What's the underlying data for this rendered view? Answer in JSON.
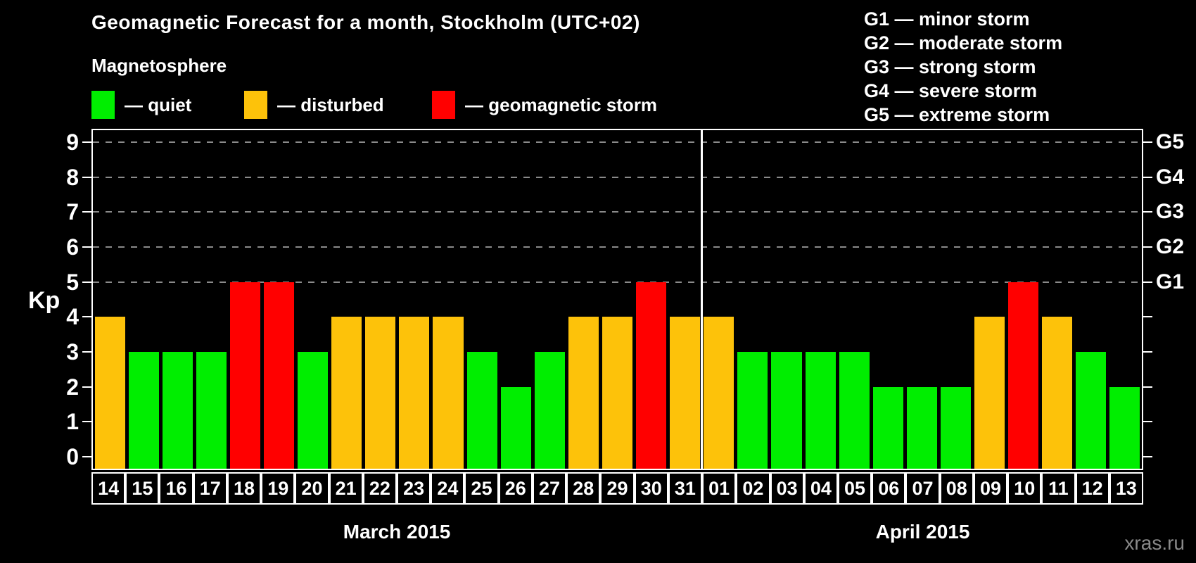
{
  "title": "Geomagnetic Forecast for a month, Stockholm (UTC+02)",
  "subtitle": "Magnetosphere",
  "legend": {
    "items": [
      {
        "key": "quiet",
        "label": "— quiet",
        "color": "#00EE00"
      },
      {
        "key": "disturbed",
        "label": "— disturbed",
        "color": "#FDC20A"
      },
      {
        "key": "storm",
        "label": "— geomagnetic storm",
        "color": "#FF0000"
      }
    ]
  },
  "g_legend": [
    "G1 — minor storm",
    "G2 — moderate storm",
    "G3 — strong storm",
    "G4 — severe storm",
    "G5 — extreme storm"
  ],
  "colors": {
    "quiet": "#00EE00",
    "disturbed": "#FDC20A",
    "storm": "#FF0000",
    "axis": "#FFFFFF",
    "grid": "#8A8A8A",
    "background": "#000000"
  },
  "chart_data": {
    "type": "bar",
    "ylabel": "Kp",
    "ylim": [
      -0.34,
      9.34
    ],
    "yticks": [
      0,
      1,
      2,
      3,
      4,
      5,
      6,
      7,
      8,
      9
    ],
    "gridlines_at": [
      5,
      6,
      7,
      8,
      9
    ],
    "right_axis": [
      {
        "kp": 5,
        "label": "G1"
      },
      {
        "kp": 6,
        "label": "G2"
      },
      {
        "kp": 7,
        "label": "G3"
      },
      {
        "kp": 8,
        "label": "G4"
      },
      {
        "kp": 9,
        "label": "G5"
      }
    ],
    "months": [
      {
        "label": "March 2015",
        "days": [
          {
            "day": "14",
            "kp": 4,
            "status": "disturbed"
          },
          {
            "day": "15",
            "kp": 3,
            "status": "quiet"
          },
          {
            "day": "16",
            "kp": 3,
            "status": "quiet"
          },
          {
            "day": "17",
            "kp": 3,
            "status": "quiet"
          },
          {
            "day": "18",
            "kp": 5,
            "status": "storm"
          },
          {
            "day": "19",
            "kp": 5,
            "status": "storm"
          },
          {
            "day": "20",
            "kp": 3,
            "status": "quiet"
          },
          {
            "day": "21",
            "kp": 4,
            "status": "disturbed"
          },
          {
            "day": "22",
            "kp": 4,
            "status": "disturbed"
          },
          {
            "day": "23",
            "kp": 4,
            "status": "disturbed"
          },
          {
            "day": "24",
            "kp": 4,
            "status": "disturbed"
          },
          {
            "day": "25",
            "kp": 3,
            "status": "quiet"
          },
          {
            "day": "26",
            "kp": 2,
            "status": "quiet"
          },
          {
            "day": "27",
            "kp": 3,
            "status": "quiet"
          },
          {
            "day": "28",
            "kp": 4,
            "status": "disturbed"
          },
          {
            "day": "29",
            "kp": 4,
            "status": "disturbed"
          },
          {
            "day": "30",
            "kp": 5,
            "status": "storm"
          },
          {
            "day": "31",
            "kp": 4,
            "status": "disturbed"
          }
        ]
      },
      {
        "label": "April 2015",
        "days": [
          {
            "day": "01",
            "kp": 4,
            "status": "disturbed"
          },
          {
            "day": "02",
            "kp": 3,
            "status": "quiet"
          },
          {
            "day": "03",
            "kp": 3,
            "status": "quiet"
          },
          {
            "day": "04",
            "kp": 3,
            "status": "quiet"
          },
          {
            "day": "05",
            "kp": 3,
            "status": "quiet"
          },
          {
            "day": "06",
            "kp": 2,
            "status": "quiet"
          },
          {
            "day": "07",
            "kp": 2,
            "status": "quiet"
          },
          {
            "day": "08",
            "kp": 2,
            "status": "quiet"
          },
          {
            "day": "09",
            "kp": 4,
            "status": "disturbed"
          },
          {
            "day": "10",
            "kp": 5,
            "status": "storm"
          },
          {
            "day": "11",
            "kp": 4,
            "status": "disturbed"
          },
          {
            "day": "12",
            "kp": 3,
            "status": "quiet"
          },
          {
            "day": "13",
            "kp": 2,
            "status": "quiet"
          }
        ]
      }
    ]
  },
  "watermark": "xras.ru"
}
